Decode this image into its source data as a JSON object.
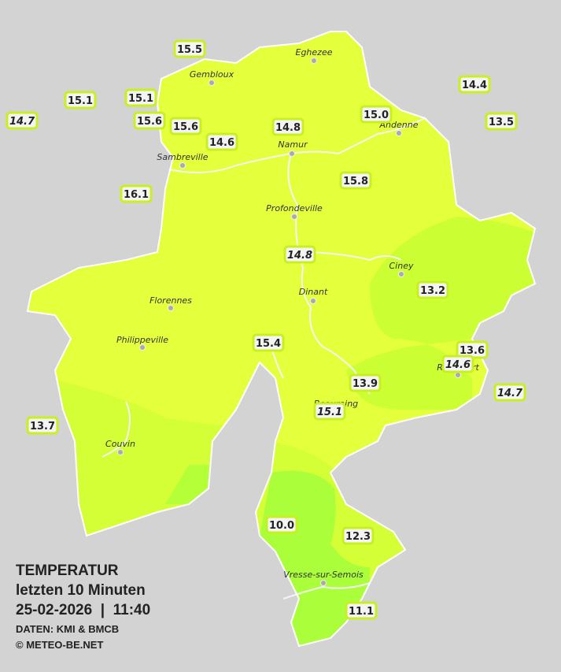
{
  "legend": {
    "title": "TEMPERATUR",
    "period": "letzten 10 Minuten",
    "datetime": "25-02-2026  |  11:40",
    "source": "DATEN: KMI & BMCB",
    "copyright": "© METEO-BE.NET"
  },
  "cities": [
    "Eghezee",
    "Gembloux",
    "Andenne",
    "Namur",
    "Sambreville",
    "Profondeville",
    "Ciney",
    "Dinant",
    "Florennes",
    "Philippeville",
    "Rochefort",
    "Beauraing",
    "Couvin",
    "Vresse-sur-Semois"
  ],
  "stations": [
    {
      "value": "15.5",
      "italic": false
    },
    {
      "value": "15.1",
      "italic": false
    },
    {
      "value": "15.1",
      "italic": false
    },
    {
      "value": "14.7",
      "italic": true
    },
    {
      "value": "15.6",
      "italic": false
    },
    {
      "value": "15.6",
      "italic": false
    },
    {
      "value": "14.6",
      "italic": false
    },
    {
      "value": "14.8",
      "italic": false
    },
    {
      "value": "15.0",
      "italic": false
    },
    {
      "value": "14.4",
      "italic": false
    },
    {
      "value": "13.5",
      "italic": false
    },
    {
      "value": "16.1",
      "italic": false
    },
    {
      "value": "15.8",
      "italic": false
    },
    {
      "value": "14.8",
      "italic": true
    },
    {
      "value": "13.2",
      "italic": false
    },
    {
      "value": "15.4",
      "italic": false
    },
    {
      "value": "13.6",
      "italic": false
    },
    {
      "value": "14.6",
      "italic": true
    },
    {
      "value": "13.9",
      "italic": false
    },
    {
      "value": "14.7",
      "italic": true
    },
    {
      "value": "15.1",
      "italic": true
    },
    {
      "value": "13.7",
      "italic": false
    },
    {
      "value": "10.0",
      "italic": false
    },
    {
      "value": "12.3",
      "italic": false
    },
    {
      "value": "11.1",
      "italic": false
    }
  ]
}
